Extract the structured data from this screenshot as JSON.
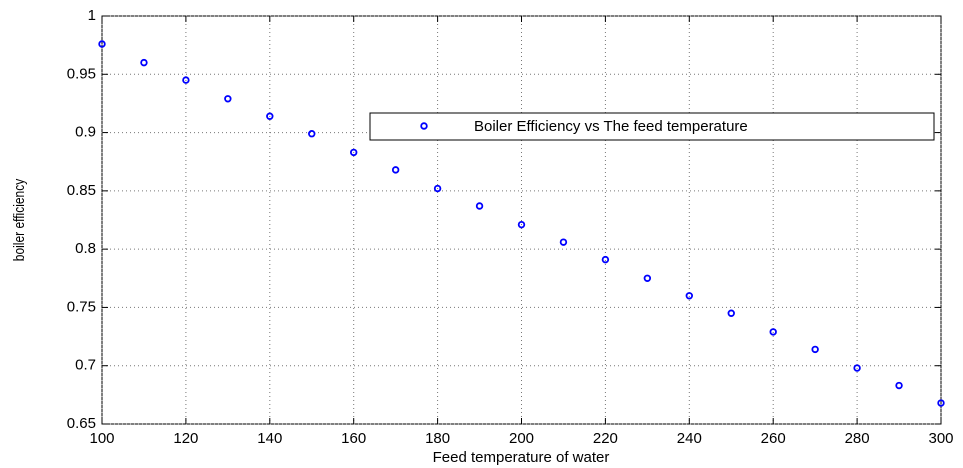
{
  "chart_data": {
    "type": "scatter",
    "xlabel": "Feed temperature of water",
    "ylabel": "boiler efficiency",
    "x": [
      100,
      110,
      120,
      130,
      140,
      150,
      160,
      170,
      180,
      190,
      200,
      210,
      220,
      230,
      240,
      250,
      260,
      270,
      280,
      290,
      300
    ],
    "series": [
      {
        "name": "Boiler Efficiency vs The feed temperature",
        "color": "#0000ff",
        "values": [
          0.976,
          0.96,
          0.945,
          0.929,
          0.914,
          0.899,
          0.883,
          0.868,
          0.852,
          0.837,
          0.821,
          0.806,
          0.791,
          0.775,
          0.76,
          0.745,
          0.729,
          0.714,
          0.698,
          0.683,
          0.668
        ]
      }
    ],
    "xlim": [
      100,
      300
    ],
    "xticks": [
      100,
      120,
      140,
      160,
      180,
      200,
      220,
      240,
      260,
      280,
      300
    ],
    "ylim": [
      0.65,
      1
    ],
    "yticks": [
      0.65,
      0.7,
      0.75,
      0.8,
      0.85,
      0.9,
      0.95,
      1
    ],
    "grid": true
  }
}
